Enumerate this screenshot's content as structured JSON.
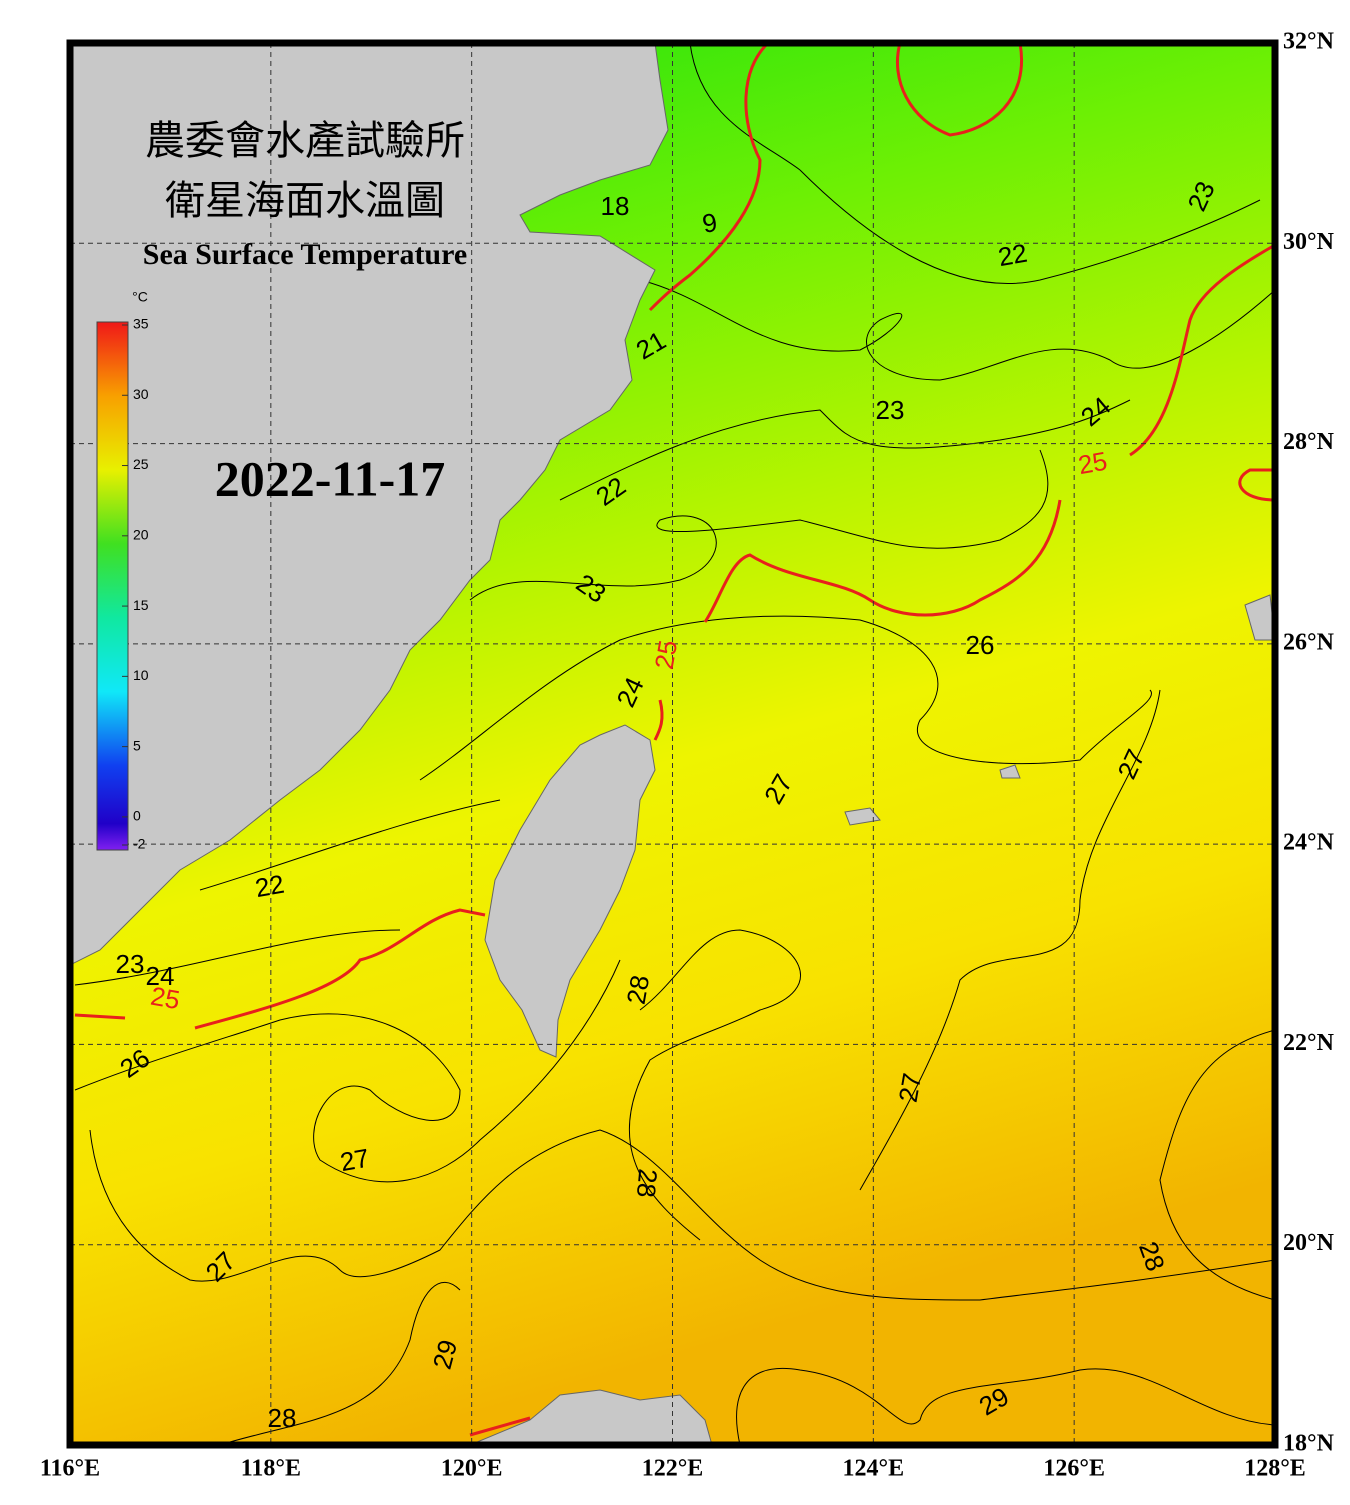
{
  "header": {
    "title_zh": "農委會水產試驗所",
    "subtitle_zh": "衛星海面水溫圖",
    "title_en": "Sea Surface Temperature",
    "date": "2022-11-17"
  },
  "colorbar": {
    "unit": "°C",
    "range": [
      -2,
      35
    ],
    "ticks": [
      35,
      30,
      25,
      20,
      15,
      10,
      5,
      0,
      -2
    ]
  },
  "map": {
    "xlim": [
      116,
      128
    ],
    "ylim": [
      18,
      32
    ],
    "xticks": [
      {
        "value": 116,
        "label": "116°E"
      },
      {
        "value": 118,
        "label": "118°E"
      },
      {
        "value": 120,
        "label": "120°E"
      },
      {
        "value": 122,
        "label": "122°E"
      },
      {
        "value": 124,
        "label": "124°E"
      },
      {
        "value": 126,
        "label": "126°E"
      },
      {
        "value": 128,
        "label": "128°E"
      }
    ],
    "yticks": [
      {
        "value": 18,
        "label": "18°N"
      },
      {
        "value": 20,
        "label": "20°N"
      },
      {
        "value": 22,
        "label": "22°N"
      },
      {
        "value": 24,
        "label": "24°N"
      },
      {
        "value": 26,
        "label": "26°N"
      },
      {
        "value": 28,
        "label": "28°N"
      },
      {
        "value": 30,
        "label": "30°N"
      },
      {
        "value": 32,
        "label": "32°N"
      }
    ],
    "highlight_contour": 25,
    "highlight_color": "#e8201c",
    "contour_labels": [
      18,
      9,
      21,
      22,
      23,
      23,
      24,
      25,
      22,
      23,
      25,
      24,
      26,
      27,
      27,
      22,
      23,
      24,
      25,
      26,
      28,
      27,
      27,
      28,
      27,
      28,
      29,
      28,
      29
    ]
  }
}
